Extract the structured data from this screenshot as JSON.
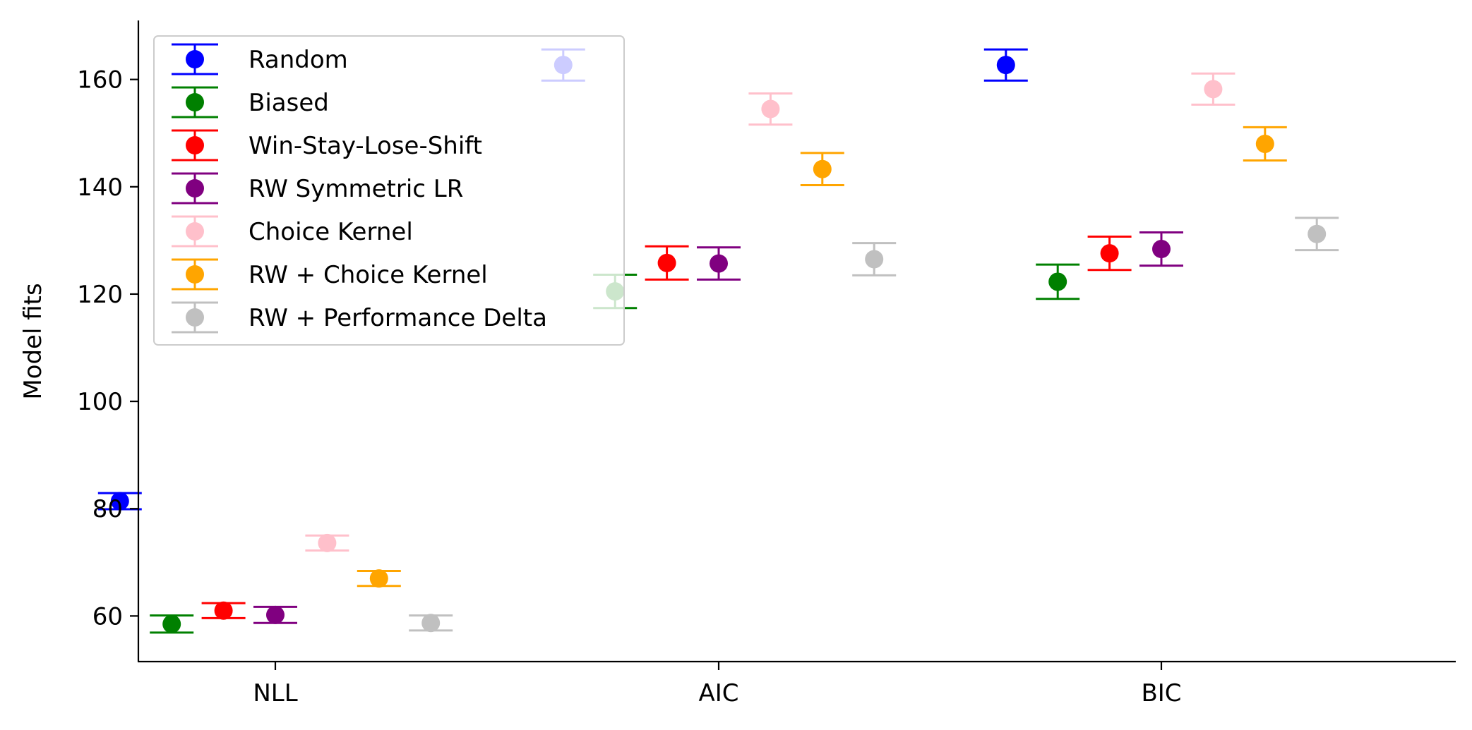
{
  "chart_data": {
    "type": "errorbar",
    "categories": [
      "NLL",
      "AIC",
      "BIC"
    ],
    "xlabel": "",
    "ylabel": "Model fits",
    "ylim": [
      51.5,
      171
    ],
    "yticks": [
      60,
      80,
      100,
      120,
      140,
      160
    ],
    "legend_position": "top-left",
    "grid": false,
    "series": [
      {
        "name": "Random",
        "color": "#0000ff",
        "values": [
          81.4,
          162.7,
          162.7
        ],
        "errors": [
          1.5,
          2.9,
          2.9
        ]
      },
      {
        "name": "Biased",
        "color": "#008000",
        "values": [
          58.5,
          120.5,
          122.3
        ],
        "errors": [
          1.6,
          3.1,
          3.2
        ]
      },
      {
        "name": "Win-Stay-Lose-Shift",
        "color": "#ff0000",
        "values": [
          61.0,
          125.8,
          127.6
        ],
        "errors": [
          1.4,
          3.1,
          3.1
        ]
      },
      {
        "name": "RW Symmetric LR",
        "color": "#800080",
        "values": [
          60.2,
          125.7,
          128.4
        ],
        "errors": [
          1.5,
          3.0,
          3.1
        ]
      },
      {
        "name": "Choice Kernel",
        "color": "#ffc0cb",
        "values": [
          73.6,
          154.5,
          158.2
        ],
        "errors": [
          1.4,
          2.9,
          2.9
        ]
      },
      {
        "name": "RW + Choice Kernel",
        "color": "#ffa500",
        "values": [
          67.0,
          143.3,
          148.0
        ],
        "errors": [
          1.4,
          3.0,
          3.1
        ]
      },
      {
        "name": "RW + Performance Delta",
        "color": "#c0c0c0",
        "values": [
          58.7,
          126.5,
          131.2
        ],
        "errors": [
          1.4,
          3.0,
          3.0
        ]
      }
    ]
  }
}
